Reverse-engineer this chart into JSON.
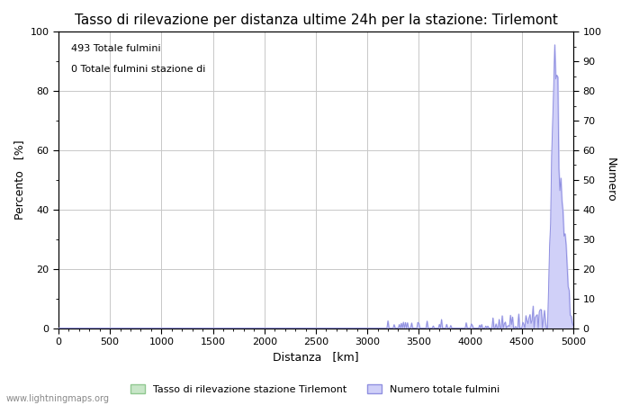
{
  "title": "Tasso di rilevazione per distanza ultime 24h per la stazione: Tirlemont",
  "xlabel": "Distanza   [km]",
  "ylabel_left": "Percento   [%]",
  "ylabel_right": "Numero",
  "annotation_line1": "493 Totale fulmini",
  "annotation_line2": "0 Totale fulmini stazione di",
  "xlim": [
    0,
    5000
  ],
  "ylim_left": [
    0,
    100
  ],
  "ylim_right": [
    0,
    100
  ],
  "x_ticks": [
    0,
    500,
    1000,
    1500,
    2000,
    2500,
    3000,
    3500,
    4000,
    4500,
    5000
  ],
  "y_ticks_left": [
    0,
    20,
    40,
    60,
    80,
    100
  ],
  "y_ticks_right": [
    0,
    10,
    20,
    30,
    40,
    50,
    60,
    70,
    80,
    90,
    100
  ],
  "legend_label_green": "Tasso di rilevazione stazione Tirlemont",
  "legend_label_blue": "Numero totale fulmini",
  "watermark": "www.lightningmaps.org",
  "title_fontsize": 11,
  "axis_label_fontsize": 9,
  "tick_fontsize": 8,
  "legend_fontsize": 8,
  "bg_color": "#ffffff",
  "grid_color": "#c8c8c8",
  "fill_green_color": "#c8e6c8",
  "fill_blue_color": "#d0d0f8",
  "line_blue_color": "#9090e0",
  "line_green_color": "#90c890"
}
